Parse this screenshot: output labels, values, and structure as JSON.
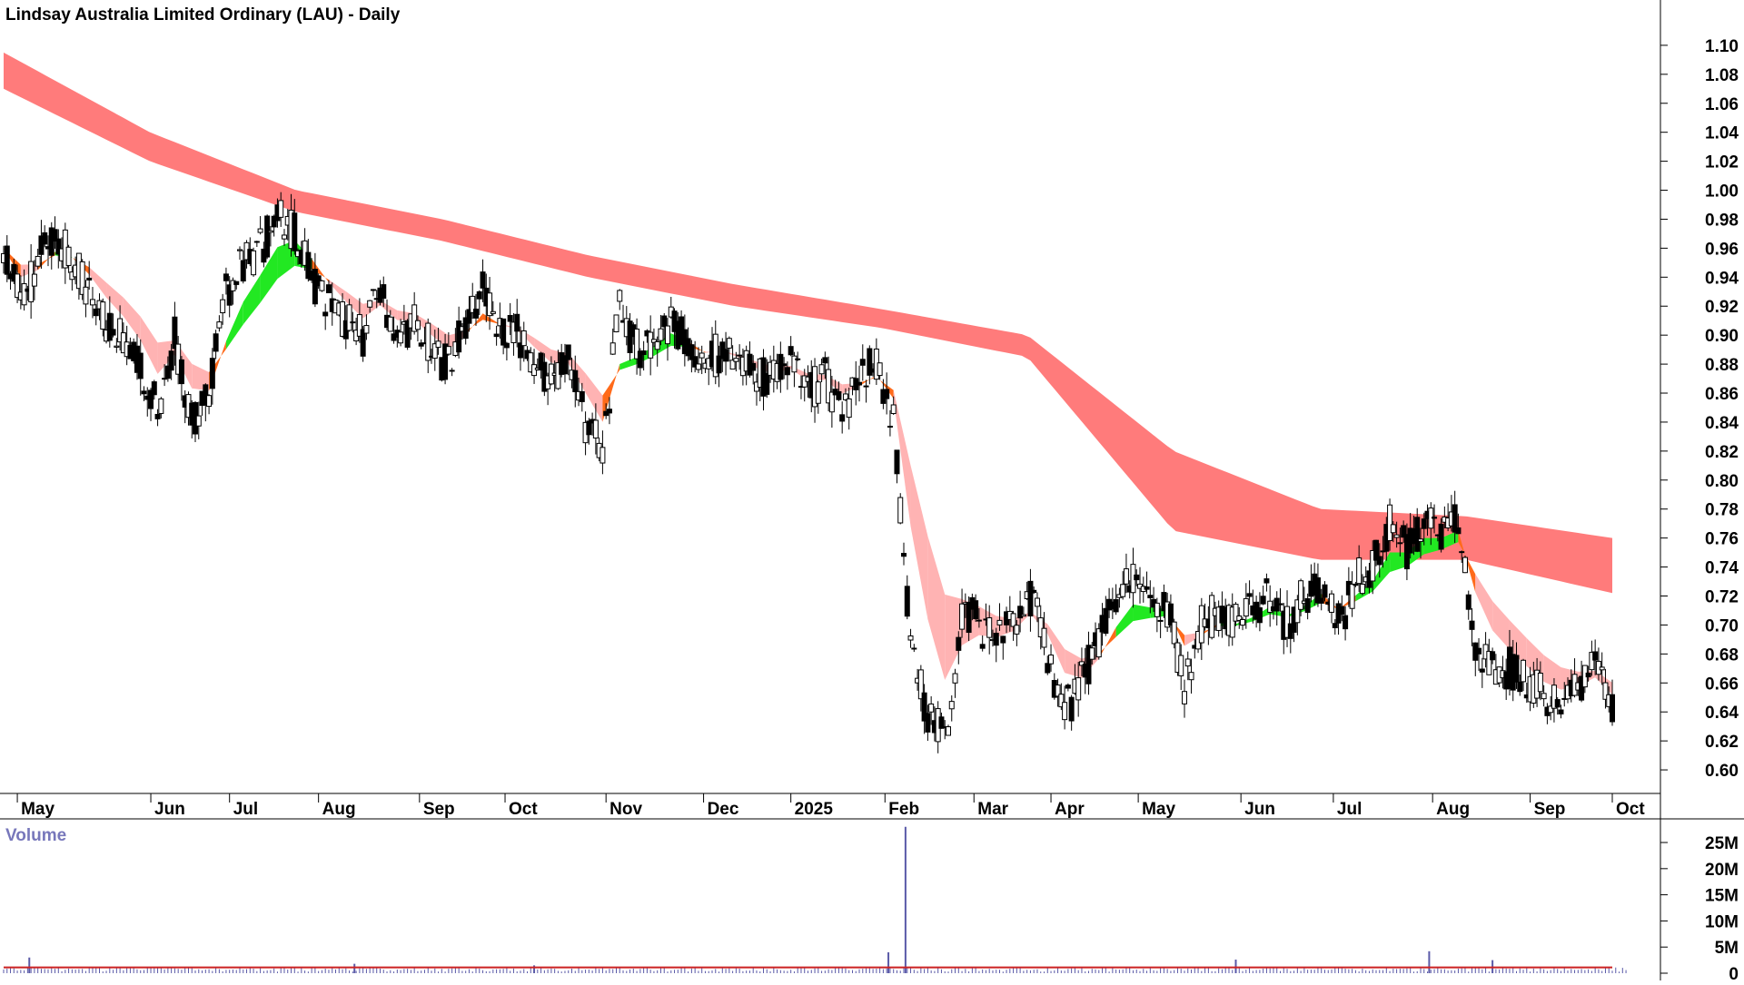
{
  "chart_data": {
    "type": "candlestick",
    "title": "Lindsay Australia Limited Ordinary (LAU) - Daily",
    "price_axis": {
      "ylim": [
        0.585,
        1.125
      ],
      "ticks": [
        "1.10",
        "1.08",
        "1.06",
        "1.04",
        "1.02",
        "1.00",
        "0.98",
        "0.96",
        "0.94",
        "0.92",
        "0.90",
        "0.88",
        "0.86",
        "0.84",
        "0.82",
        "0.80",
        "0.78",
        "0.76",
        "0.74",
        "0.72",
        "0.70",
        "0.68",
        "0.66",
        "0.64",
        "0.62",
        "0.60"
      ]
    },
    "x_axis_labels": [
      "May",
      "Jun",
      "Jul",
      "Aug",
      "Sep",
      "Oct",
      "Nov",
      "Dec",
      "2025",
      "Feb",
      "Mar",
      "Apr",
      "May",
      "Jun",
      "Jul",
      "Aug",
      "Sep",
      "Oct"
    ],
    "weekly_closes": [
      0.96,
      0.92,
      0.95,
      0.97,
      0.95,
      0.93,
      0.91,
      0.9,
      0.88,
      0.85,
      0.9,
      0.84,
      0.86,
      0.93,
      0.95,
      0.96,
      0.98,
      0.97,
      0.94,
      0.92,
      0.91,
      0.9,
      0.93,
      0.9,
      0.91,
      0.89,
      0.88,
      0.91,
      0.93,
      0.9,
      0.9,
      0.88,
      0.87,
      0.88,
      0.84,
      0.82,
      0.92,
      0.89,
      0.9,
      0.91,
      0.89,
      0.88,
      0.89,
      0.88,
      0.87,
      0.87,
      0.88,
      0.86,
      0.87,
      0.85,
      0.87,
      0.88,
      0.84,
      0.68,
      0.64,
      0.62,
      0.71,
      0.7,
      0.69,
      0.7,
      0.72,
      0.68,
      0.64,
      0.66,
      0.69,
      0.72,
      0.73,
      0.71,
      0.71,
      0.66,
      0.7,
      0.71,
      0.7,
      0.71,
      0.72,
      0.7,
      0.72,
      0.73,
      0.7,
      0.73,
      0.74,
      0.77,
      0.75,
      0.77,
      0.76,
      0.77,
      0.68,
      0.67,
      0.67,
      0.66,
      0.65,
      0.65,
      0.66,
      0.67,
      0.64
    ],
    "long_ma_upper": [
      1.095,
      1.04,
      1.0,
      0.98,
      0.955,
      0.935,
      0.918,
      0.9,
      0.82,
      0.78,
      0.775,
      0.76
    ],
    "long_ma_lower": [
      1.07,
      1.02,
      0.985,
      0.965,
      0.94,
      0.92,
      0.905,
      0.885,
      0.765,
      0.745,
      0.745,
      0.722
    ],
    "volume_axis": {
      "ylim": [
        0,
        29000000
      ],
      "ticks": [
        "25M",
        "20M",
        "15M",
        "10M",
        "5M",
        "0"
      ]
    },
    "volume_label": "Volume",
    "volume_spikes": [
      {
        "week": 52.7,
        "value": 28000000
      },
      {
        "week": 51.7,
        "value": 4000000
      },
      {
        "week": 31.0,
        "value": 1500000
      },
      {
        "week": 83.3,
        "value": 4200000
      },
      {
        "week": 72.0,
        "value": 2600000
      },
      {
        "week": 20.5,
        "value": 1800000
      },
      {
        "week": 1.5,
        "value": 3000000
      },
      {
        "week": 87.0,
        "value": 2500000
      }
    ],
    "colors": {
      "up": "#ffffff",
      "down": "#000000",
      "long_ribbon": "#ff7b7b",
      "short_ribbon_down": "#ffb3b3",
      "short_ribbon_up": "#22e822",
      "short_ribbon_mixed": "#ff6a1a",
      "volume_bar": "#5a5aa8",
      "volume_ma": "#cc2222",
      "axis": "#000000"
    }
  }
}
